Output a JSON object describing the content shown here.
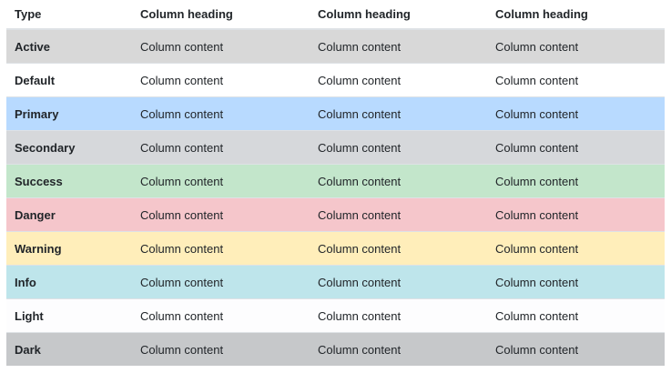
{
  "table": {
    "headers": [
      "Type",
      "Column heading",
      "Column heading",
      "Column heading"
    ],
    "rows": [
      {
        "type": "Active",
        "cells": [
          "Column content",
          "Column content",
          "Column content"
        ],
        "color": "#d8d8d8"
      },
      {
        "type": "Default",
        "cells": [
          "Column content",
          "Column content",
          "Column content"
        ],
        "color": "#ffffff"
      },
      {
        "type": "Primary",
        "cells": [
          "Column content",
          "Column content",
          "Column content"
        ],
        "color": "#b8daff"
      },
      {
        "type": "Secondary",
        "cells": [
          "Column content",
          "Column content",
          "Column content"
        ],
        "color": "#d6d8db"
      },
      {
        "type": "Success",
        "cells": [
          "Column content",
          "Column content",
          "Column content"
        ],
        "color": "#c3e6cb"
      },
      {
        "type": "Danger",
        "cells": [
          "Column content",
          "Column content",
          "Column content"
        ],
        "color": "#f5c6cb"
      },
      {
        "type": "Warning",
        "cells": [
          "Column content",
          "Column content",
          "Column content"
        ],
        "color": "#ffeeba"
      },
      {
        "type": "Info",
        "cells": [
          "Column content",
          "Column content",
          "Column content"
        ],
        "color": "#bee5eb"
      },
      {
        "type": "Light",
        "cells": [
          "Column content",
          "Column content",
          "Column content"
        ],
        "color": "#fdfdfe"
      },
      {
        "type": "Dark",
        "cells": [
          "Column content",
          "Column content",
          "Column content"
        ],
        "color": "#c6c8ca"
      }
    ]
  }
}
